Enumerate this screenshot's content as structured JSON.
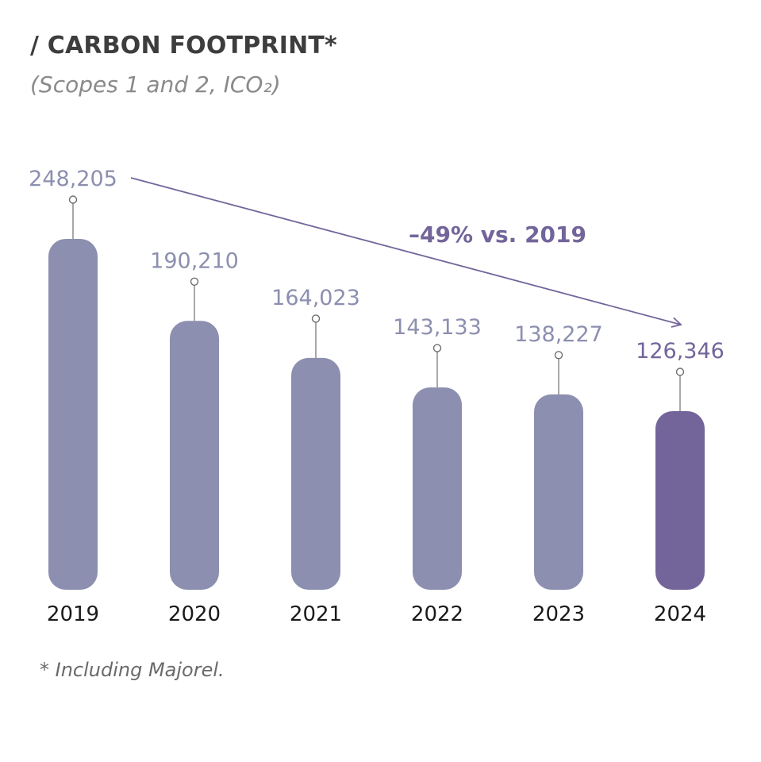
{
  "header": {
    "title": "/ CARBON FOOTPRINT*",
    "subtitle": "(Scopes 1 and 2, ICO₂)"
  },
  "footnote": "* Including Majorel.",
  "colors": {
    "bar": "#8c8faf",
    "bar_highlight": "#73659a",
    "label": "#8c8faf",
    "label_highlight": "#73659a",
    "trend": "#73659a"
  },
  "chart_data": {
    "type": "bar",
    "title": "/ CARBON FOOTPRINT*",
    "subtitle": "(Scopes 1 and 2, ICO₂)",
    "categories": [
      "2019",
      "2020",
      "2021",
      "2022",
      "2023",
      "2024"
    ],
    "values": [
      248205,
      190210,
      164023,
      143133,
      138227,
      126346
    ],
    "value_labels": [
      "248,205",
      "190,210",
      "164,023",
      "143,133",
      "138,227",
      "126,346"
    ],
    "highlight_index": 5,
    "ylim": [
      0,
      248205
    ],
    "xlabel": "",
    "ylabel": "",
    "grid": false,
    "annotations": [
      {
        "text": "–49% vs. 2019",
        "from_category": "2019",
        "to_category": "2024"
      }
    ]
  }
}
